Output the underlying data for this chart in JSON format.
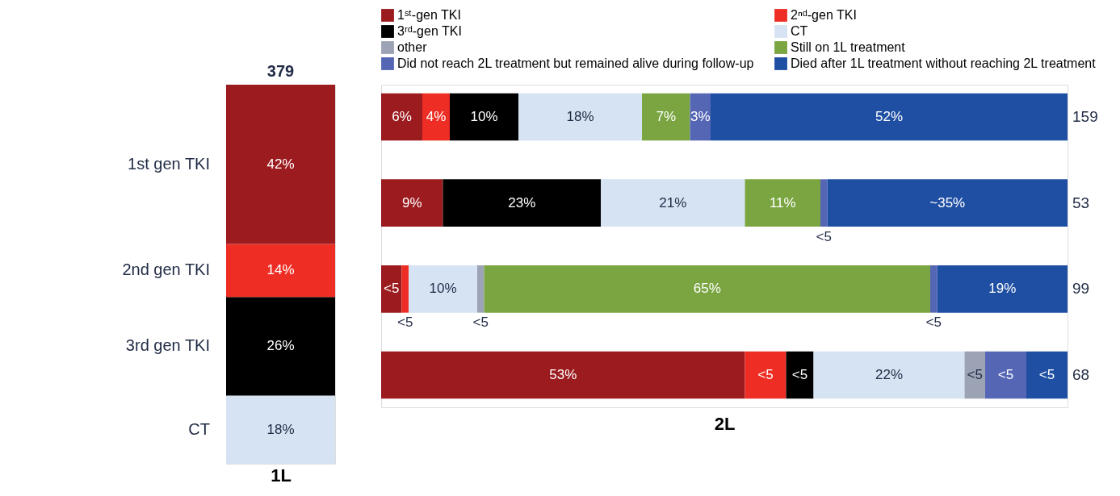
{
  "chart_data": [
    {
      "type": "bar",
      "stacked": true,
      "categories": [
        null
      ],
      "xlabel": "1L",
      "legend": false,
      "annotations": [
        "379"
      ],
      "series": [
        {
          "name": "CT",
          "color": "#d6e3f3",
          "values": [
            18
          ],
          "value_labels": [
            "18%"
          ]
        },
        {
          "name": "3rd gen TKI",
          "color": "#000000",
          "values": [
            26
          ],
          "value_labels": [
            "26%"
          ]
        },
        {
          "name": "2nd gen TKI",
          "color": "#ee2e24",
          "values": [
            14
          ],
          "value_labels": [
            "14%"
          ]
        },
        {
          "name": "1st gen TKI",
          "color": "#9b1b1f",
          "values": [
            42
          ],
          "value_labels": [
            "42%"
          ]
        }
      ]
    },
    {
      "type": "bar",
      "stacked": true,
      "orientation": "horizontal",
      "categories": [
        null,
        null,
        null,
        null
      ],
      "xlabel": "2L",
      "legend": "top",
      "annotations": [
        "159",
        "53",
        "99",
        "68"
      ],
      "series": [
        {
          "name": "1ˢᵗ-gen TKI",
          "color": "#9b1b1f",
          "values": [
            6,
            9,
            3,
            53
          ],
          "value_labels": [
            "6%",
            "9%",
            "<5",
            "53%"
          ]
        },
        {
          "name": "2ⁿᵈ-gen TKI",
          "color": "#ee2e24",
          "values": [
            4,
            null,
            1,
            6
          ],
          "value_labels": [
            "4%",
            null,
            "<5",
            "<5"
          ]
        },
        {
          "name": "3ʳᵈ-gen TKI",
          "color": "#000000",
          "values": [
            10,
            23,
            null,
            4
          ],
          "value_labels": [
            "10%",
            "23%",
            null,
            "<5"
          ]
        },
        {
          "name": "CT",
          "color": "#d6e3f3",
          "values": [
            18,
            21,
            10,
            22
          ],
          "value_labels": [
            "18%",
            "21%",
            "10%",
            "22%"
          ]
        },
        {
          "name": "other",
          "color": "#9ca3b5",
          "values": [
            null,
            null,
            1,
            3
          ],
          "value_labels": [
            null,
            null,
            "<5",
            "<5"
          ]
        },
        {
          "name": "Still on 1L treatment",
          "color": "#7aa541",
          "values": [
            7,
            11,
            65,
            null
          ],
          "value_labels": [
            "7%",
            "11%",
            "65%",
            null
          ]
        },
        {
          "name": "Did not reach  2L treatment but remained alive during follow-up",
          "color": "#5566b5",
          "values": [
            3,
            1,
            1,
            6
          ],
          "value_labels": [
            "3%",
            "<5",
            "<5",
            "<5"
          ]
        },
        {
          "name": "Died after 1L treatment without reaching  2L treatment",
          "color": "#1f4fa3",
          "values": [
            52,
            35,
            19,
            6
          ],
          "value_labels": [
            "52%",
            "~35%",
            "19%",
            "<5"
          ]
        }
      ]
    }
  ]
}
